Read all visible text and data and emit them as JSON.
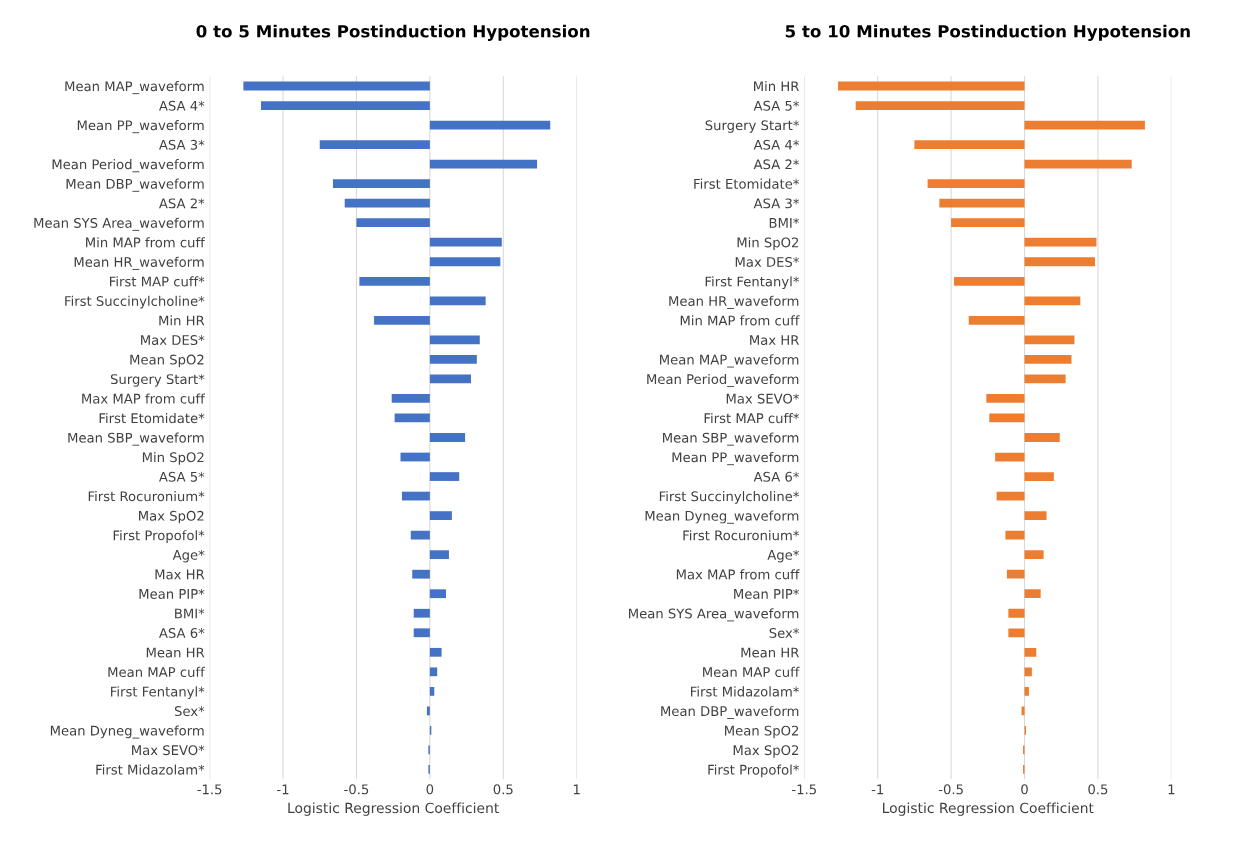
{
  "chart_data": [
    {
      "type": "bar",
      "orientation": "horizontal",
      "title": "0 to 5 Minutes Postinduction Hypotension",
      "xlabel": "Logistic Regression Coefficient",
      "categories": [
        "Mean MAP_waveform",
        "ASA 4*",
        "Mean PP_waveform",
        "ASA 3*",
        "Mean Period_waveform",
        "Mean DBP_waveform",
        "ASA 2*",
        "Mean SYS Area_waveform",
        "Min MAP from cuff",
        "Mean HR_waveform",
        "First MAP cuff*",
        "First Succinylcholine*",
        "Min HR",
        "Max DES*",
        "Mean SpO2",
        "Surgery Start*",
        "Max MAP from cuff",
        "First Etomidate*",
        "Mean SBP_waveform",
        "Min SpO2",
        "ASA 5*",
        "First Rocuronium*",
        "Max SpO2",
        "First Propofol*",
        "Age*",
        "Max HR",
        "Mean PIP*",
        "BMI*",
        "ASA 6*",
        "Mean HR",
        "Mean MAP cuff",
        "First Fentanyl*",
        "Sex*",
        "Mean Dyneg_waveform",
        "Max SEVO*",
        "First Midazolam*"
      ],
      "values": [
        -1.27,
        -1.15,
        0.82,
        -0.75,
        0.73,
        -0.66,
        -0.58,
        -0.5,
        0.49,
        0.48,
        -0.48,
        0.38,
        -0.38,
        0.34,
        0.32,
        0.28,
        -0.26,
        -0.24,
        0.24,
        -0.2,
        0.2,
        -0.19,
        0.15,
        -0.13,
        0.13,
        -0.12,
        0.11,
        -0.11,
        -0.11,
        0.08,
        0.05,
        0.03,
        -0.02,
        0.01,
        -0.01,
        -0.01
      ],
      "color": "#4472c4",
      "xlim": [
        -1.5,
        1
      ],
      "xticks": [
        -1.5,
        -1,
        -0.5,
        0,
        0.5,
        1
      ],
      "grid": "x"
    },
    {
      "type": "bar",
      "orientation": "horizontal",
      "title": "5 to 10 Minutes Postinduction Hypotension",
      "xlabel": "Logistic Regression Coefficient",
      "categories": [
        "Min HR",
        "ASA 5*",
        "Surgery Start*",
        "ASA 4*",
        "ASA 2*",
        "First Etomidate*",
        "ASA 3*",
        "BMI*",
        "Min SpO2",
        "Max DES*",
        "First Fentanyl*",
        "Mean HR_waveform",
        "Min MAP from cuff",
        "Max HR",
        "Mean MAP_waveform",
        "Mean Period_waveform",
        "Max SEVO*",
        "First MAP cuff*",
        "Mean SBP_waveform",
        "Mean PP_waveform",
        "ASA 6*",
        "First Succinylcholine*",
        "Mean Dyneg_waveform",
        "First Rocuronium*",
        "Age*",
        "Max MAP from cuff",
        "Mean PIP*",
        "Mean SYS Area_waveform",
        "Sex*",
        "Mean HR",
        "Mean MAP cuff",
        "First Midazolam*",
        "Mean DBP_waveform",
        "Mean SpO2",
        "Max SpO2",
        "First Propofol*"
      ],
      "values": [
        -1.27,
        -1.15,
        0.82,
        -0.75,
        0.73,
        -0.66,
        -0.58,
        -0.5,
        0.49,
        0.48,
        -0.48,
        0.38,
        -0.38,
        0.34,
        0.32,
        0.28,
        -0.26,
        -0.24,
        0.24,
        -0.2,
        0.2,
        -0.19,
        0.15,
        -0.13,
        0.13,
        -0.12,
        0.11,
        -0.11,
        -0.11,
        0.08,
        0.05,
        0.03,
        -0.02,
        0.01,
        -0.01,
        -0.01
      ],
      "color": "#ed7d31",
      "xlim": [
        -1.5,
        1
      ],
      "xticks": [
        -1.5,
        -1,
        -0.5,
        0,
        0.5,
        1
      ],
      "grid": "x"
    }
  ]
}
